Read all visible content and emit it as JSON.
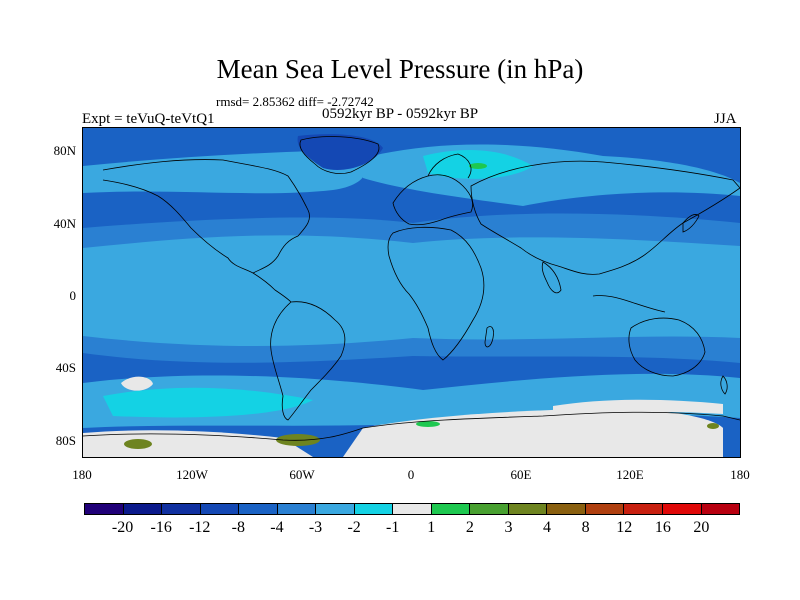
{
  "title": "Mean Sea Level Pressure (in hPa)",
  "stats": "rmsd= 2.85362  diff= -2.72742",
  "experiment": "Expt = teVuQ-teVtQ1",
  "period": "0592kyr BP - 0592kyr BP",
  "season": "JJA",
  "lat_labels": [
    "80N",
    "40N",
    "0",
    "40S",
    "80S"
  ],
  "lon_labels": [
    "180",
    "120W",
    "60W",
    "0",
    "60E",
    "120E",
    "180"
  ],
  "colorbar": {
    "labels": [
      "-20",
      "-16",
      "-12",
      "-8",
      "-4",
      "-3",
      "-2",
      "-1",
      "1",
      "2",
      "3",
      "4",
      "8",
      "12",
      "16",
      "20"
    ],
    "colors": [
      "#200078",
      "#0b1a8c",
      "#1030a0",
      "#1448b4",
      "#1a62c4",
      "#2a80d2",
      "#3aa8e0",
      "#14d2e4",
      "#e8e8e8",
      "#1ec850",
      "#48a030",
      "#6e8420",
      "#8a6010",
      "#b04010",
      "#c82010",
      "#e00808",
      "#b80010"
    ]
  },
  "map_colors": {
    "background": "#1a62c4",
    "mid_blue": "#2a80d2",
    "light_blue": "#3aa8e0",
    "cyan": "#14d2e4",
    "near_zero": "#e8e8e8",
    "deep_blue": "#1448b4",
    "green": "#1ec850",
    "olive": "#6e8420",
    "coast": "#000000"
  }
}
